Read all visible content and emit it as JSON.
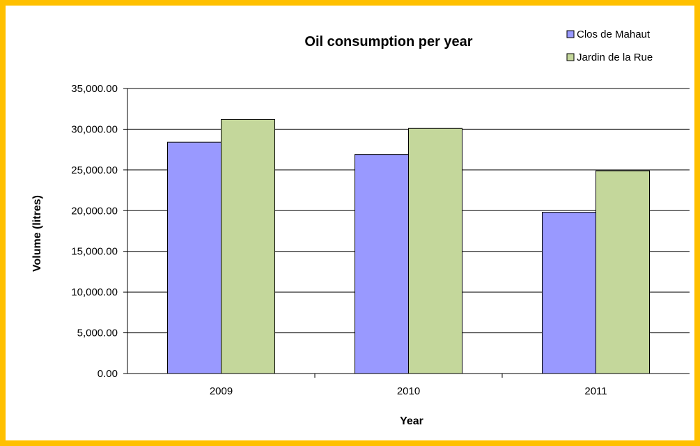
{
  "chart_data": {
    "type": "bar",
    "title": "Oil consumption per year",
    "xlabel": "Year",
    "ylabel": "Volume (litres)",
    "categories": [
      "2009",
      "2010",
      "2011"
    ],
    "series": [
      {
        "name": "Clos de Mahaut",
        "values": [
          28400,
          26900,
          19800
        ],
        "color": "#9999ff"
      },
      {
        "name": "Jardin de la Rue",
        "values": [
          31200,
          30100,
          24900
        ],
        "color": "#c4d79b"
      }
    ],
    "ylim": [
      0,
      35000
    ],
    "yticks": [
      "0.00",
      "5,000.00",
      "10,000.00",
      "15,000.00",
      "20,000.00",
      "25,000.00",
      "30,000.00",
      "35,000.00"
    ],
    "grid": true,
    "legend": "top-right",
    "frame_color": "#ffc000"
  }
}
